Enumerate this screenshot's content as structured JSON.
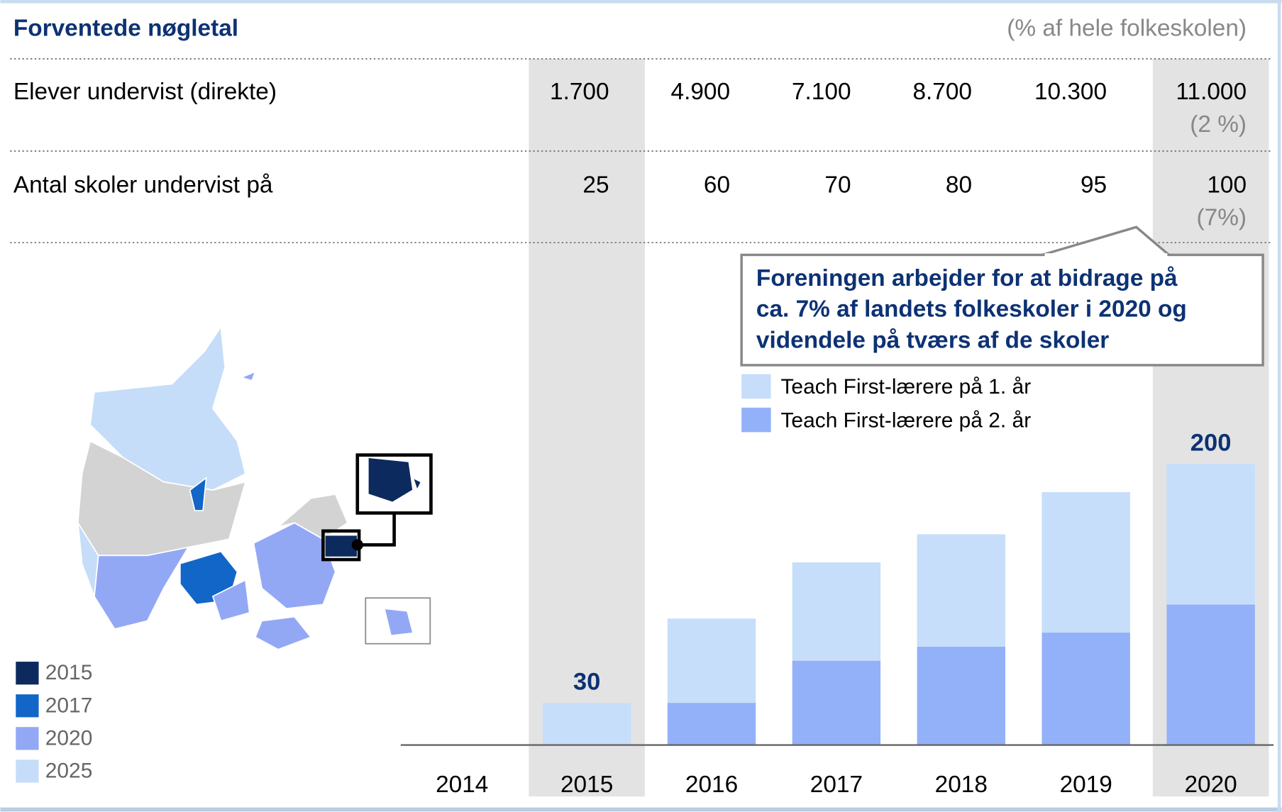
{
  "header": {
    "title": "Forventede nøgletal",
    "note": "(% af hele folkeskolen)"
  },
  "table": {
    "rows": [
      {
        "label": "Elever undervist (direkte)",
        "cells": [
          "1.700",
          "4.900",
          "7.100",
          "8.700",
          "10.300",
          "11.000"
        ],
        "sub": "(2 %)"
      },
      {
        "label": "Antal skoler undervist på",
        "cells": [
          "25",
          "60",
          "70",
          "80",
          "95",
          "100"
        ],
        "sub": "(7%)"
      }
    ]
  },
  "callout": [
    "Foreningen arbejder for at bidrage på",
    "ca. 7% af landets folkeskoler i 2020 og",
    "videndele på tværs af de skoler"
  ],
  "map_legend": [
    {
      "label": "2015",
      "color": "#0d2a5e"
    },
    {
      "label": "2017",
      "color": "#1166c8"
    },
    {
      "label": "2020",
      "color": "#93a8f5"
    },
    {
      "label": "2025",
      "color": "#c5ddf8"
    }
  ],
  "chart_data": {
    "type": "stacked_bar",
    "categories": [
      "2014",
      "2015",
      "2016",
      "2017",
      "2018",
      "2019",
      "2020"
    ],
    "series": [
      {
        "name": "Teach First-lærere på 1. år",
        "color": "#c7defa",
        "values": [
          null,
          30,
          60,
          70,
          80,
          100,
          100
        ]
      },
      {
        "name": "Teach First-lærere på 2. år",
        "color": "#93b1f9",
        "values": [
          null,
          0,
          30,
          60,
          70,
          80,
          100
        ]
      }
    ],
    "total_labels": [
      null,
      30,
      null,
      null,
      null,
      null,
      200
    ],
    "ylim": [
      0,
      200
    ],
    "highlight_columns": [
      1,
      6
    ],
    "highlight_color": "#e3e3e3"
  }
}
